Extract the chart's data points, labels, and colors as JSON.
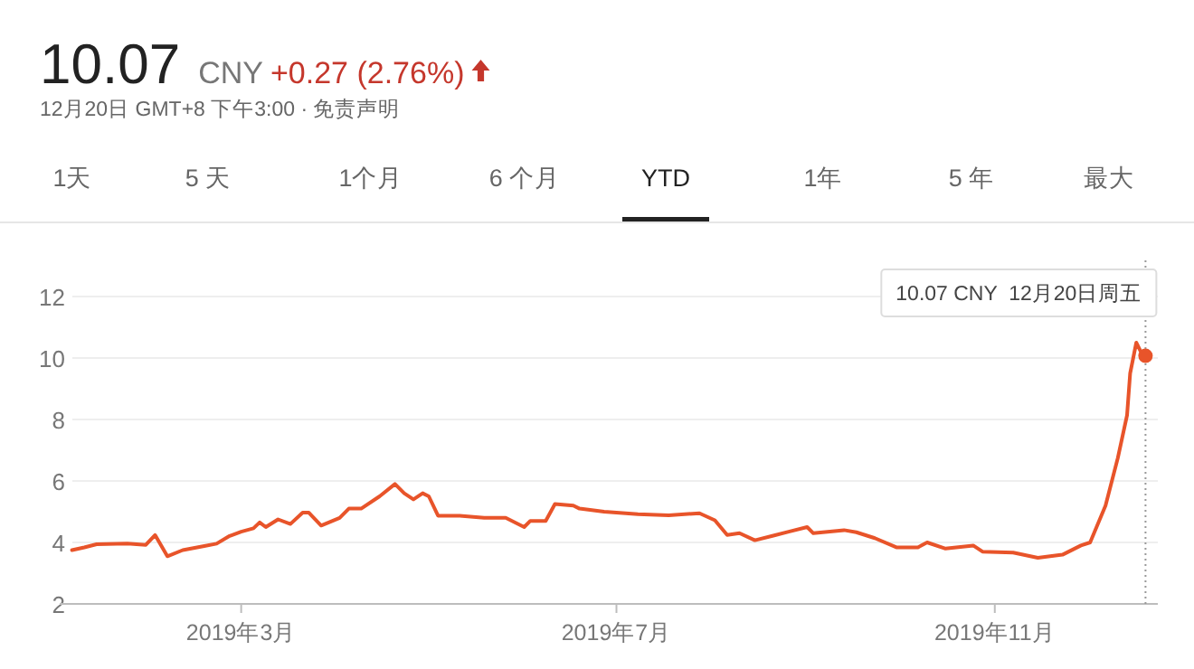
{
  "chart_data": {
    "type": "line",
    "title": "10.07",
    "subtitle": "12月20日 GMT+8 下午3:00 · 免责声明",
    "annotations": [
      "CNY",
      "+0.27 (2.76%)",
      "1天",
      "5 天",
      "1个月",
      "6 个月",
      "YTD",
      "1年",
      "5 年",
      "最大",
      {
        "text": "10.07 CNY  12月20日周五",
        "x": "2019-12-20",
        "y": 10.07
      }
    ],
    "x": [
      "2019-01-05",
      "2019-01-09",
      "2019-01-13",
      "2019-01-23",
      "2019-01-29",
      "2019-02-01",
      "2019-02-05",
      "2019-02-10",
      "2019-02-17",
      "2019-02-21",
      "2019-02-25",
      "2019-03-01",
      "2019-03-05",
      "2019-03-07",
      "2019-03-09",
      "2019-03-13",
      "2019-03-17",
      "2019-03-21",
      "2019-03-23",
      "2019-03-27",
      "2019-04-02",
      "2019-04-05",
      "2019-04-09",
      "2019-04-15",
      "2019-04-20",
      "2019-04-23",
      "2019-04-26",
      "2019-04-29",
      "2019-05-01",
      "2019-05-04",
      "2019-05-11",
      "2019-05-19",
      "2019-05-26",
      "2019-06-01",
      "2019-06-03",
      "2019-06-08",
      "2019-06-11",
      "2019-06-17",
      "2019-06-19",
      "2019-06-27",
      "2019-07-08",
      "2019-07-18",
      "2019-07-28",
      "2019-08-02",
      "2019-08-06",
      "2019-08-10",
      "2019-08-15",
      "2019-08-21",
      "2019-08-26",
      "2019-09-01",
      "2019-09-03",
      "2019-09-13",
      "2019-09-17",
      "2019-09-23",
      "2019-09-30",
      "2019-10-07",
      "2019-10-10",
      "2019-10-16",
      "2019-10-25",
      "2019-10-28",
      "2019-11-07",
      "2019-11-15",
      "2019-11-23",
      "2019-11-29",
      "2019-12-02",
      "2019-12-07",
      "2019-12-11",
      "2019-12-14",
      "2019-12-15",
      "2019-12-17",
      "2019-12-19",
      "2019-12-20"
    ],
    "series": [
      {
        "color": "#e8542a",
        "values": [
          3.75,
          3.84,
          3.94,
          3.96,
          3.92,
          4.24,
          3.55,
          3.75,
          3.88,
          3.96,
          4.2,
          4.35,
          4.46,
          4.65,
          4.5,
          4.75,
          4.6,
          4.97,
          4.97,
          4.55,
          4.8,
          5.1,
          5.1,
          5.5,
          5.9,
          5.6,
          5.4,
          5.6,
          5.5,
          4.87,
          4.87,
          4.8,
          4.8,
          4.5,
          4.7,
          4.7,
          5.25,
          5.2,
          5.1,
          5.0,
          4.92,
          4.88,
          4.95,
          4.72,
          4.24,
          4.3,
          4.07,
          4.22,
          4.35,
          4.5,
          4.3,
          4.4,
          4.33,
          4.14,
          3.84,
          3.84,
          4.0,
          3.8,
          3.9,
          3.7,
          3.67,
          3.5,
          3.6,
          3.9,
          4.0,
          5.2,
          6.75,
          8.14,
          9.5,
          10.5,
          10.1,
          10.07
        ]
      }
    ],
    "xlim": [
      "2019-01-01",
      "2019-12-24"
    ],
    "xticks": [
      {
        "value": "2019-03-01",
        "label": "2019年3月"
      },
      {
        "value": "2019-07-01",
        "label": "2019年7月"
      },
      {
        "value": "2019-11-01",
        "label": "2019年11月"
      }
    ],
    "ylim": [
      2,
      12
    ],
    "yticks": [
      2,
      4,
      6,
      8,
      10,
      12
    ],
    "grid": "y",
    "ref_lines": [
      {
        "axis": "x",
        "value": "2019-12-20",
        "color": "#999999",
        "line_style": "dotted"
      }
    ],
    "marker": "none",
    "line_style": "solid"
  }
}
